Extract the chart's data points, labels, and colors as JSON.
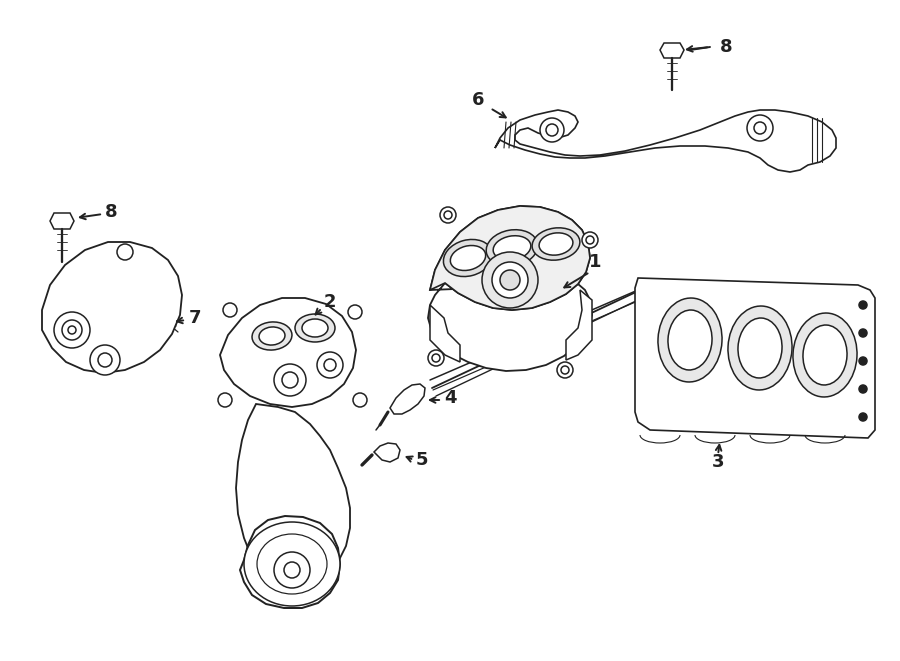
{
  "background_color": "#ffffff",
  "line_color": "#222222",
  "line_width": 1.1,
  "fig_width": 9.0,
  "fig_height": 6.61,
  "dpi": 100
}
